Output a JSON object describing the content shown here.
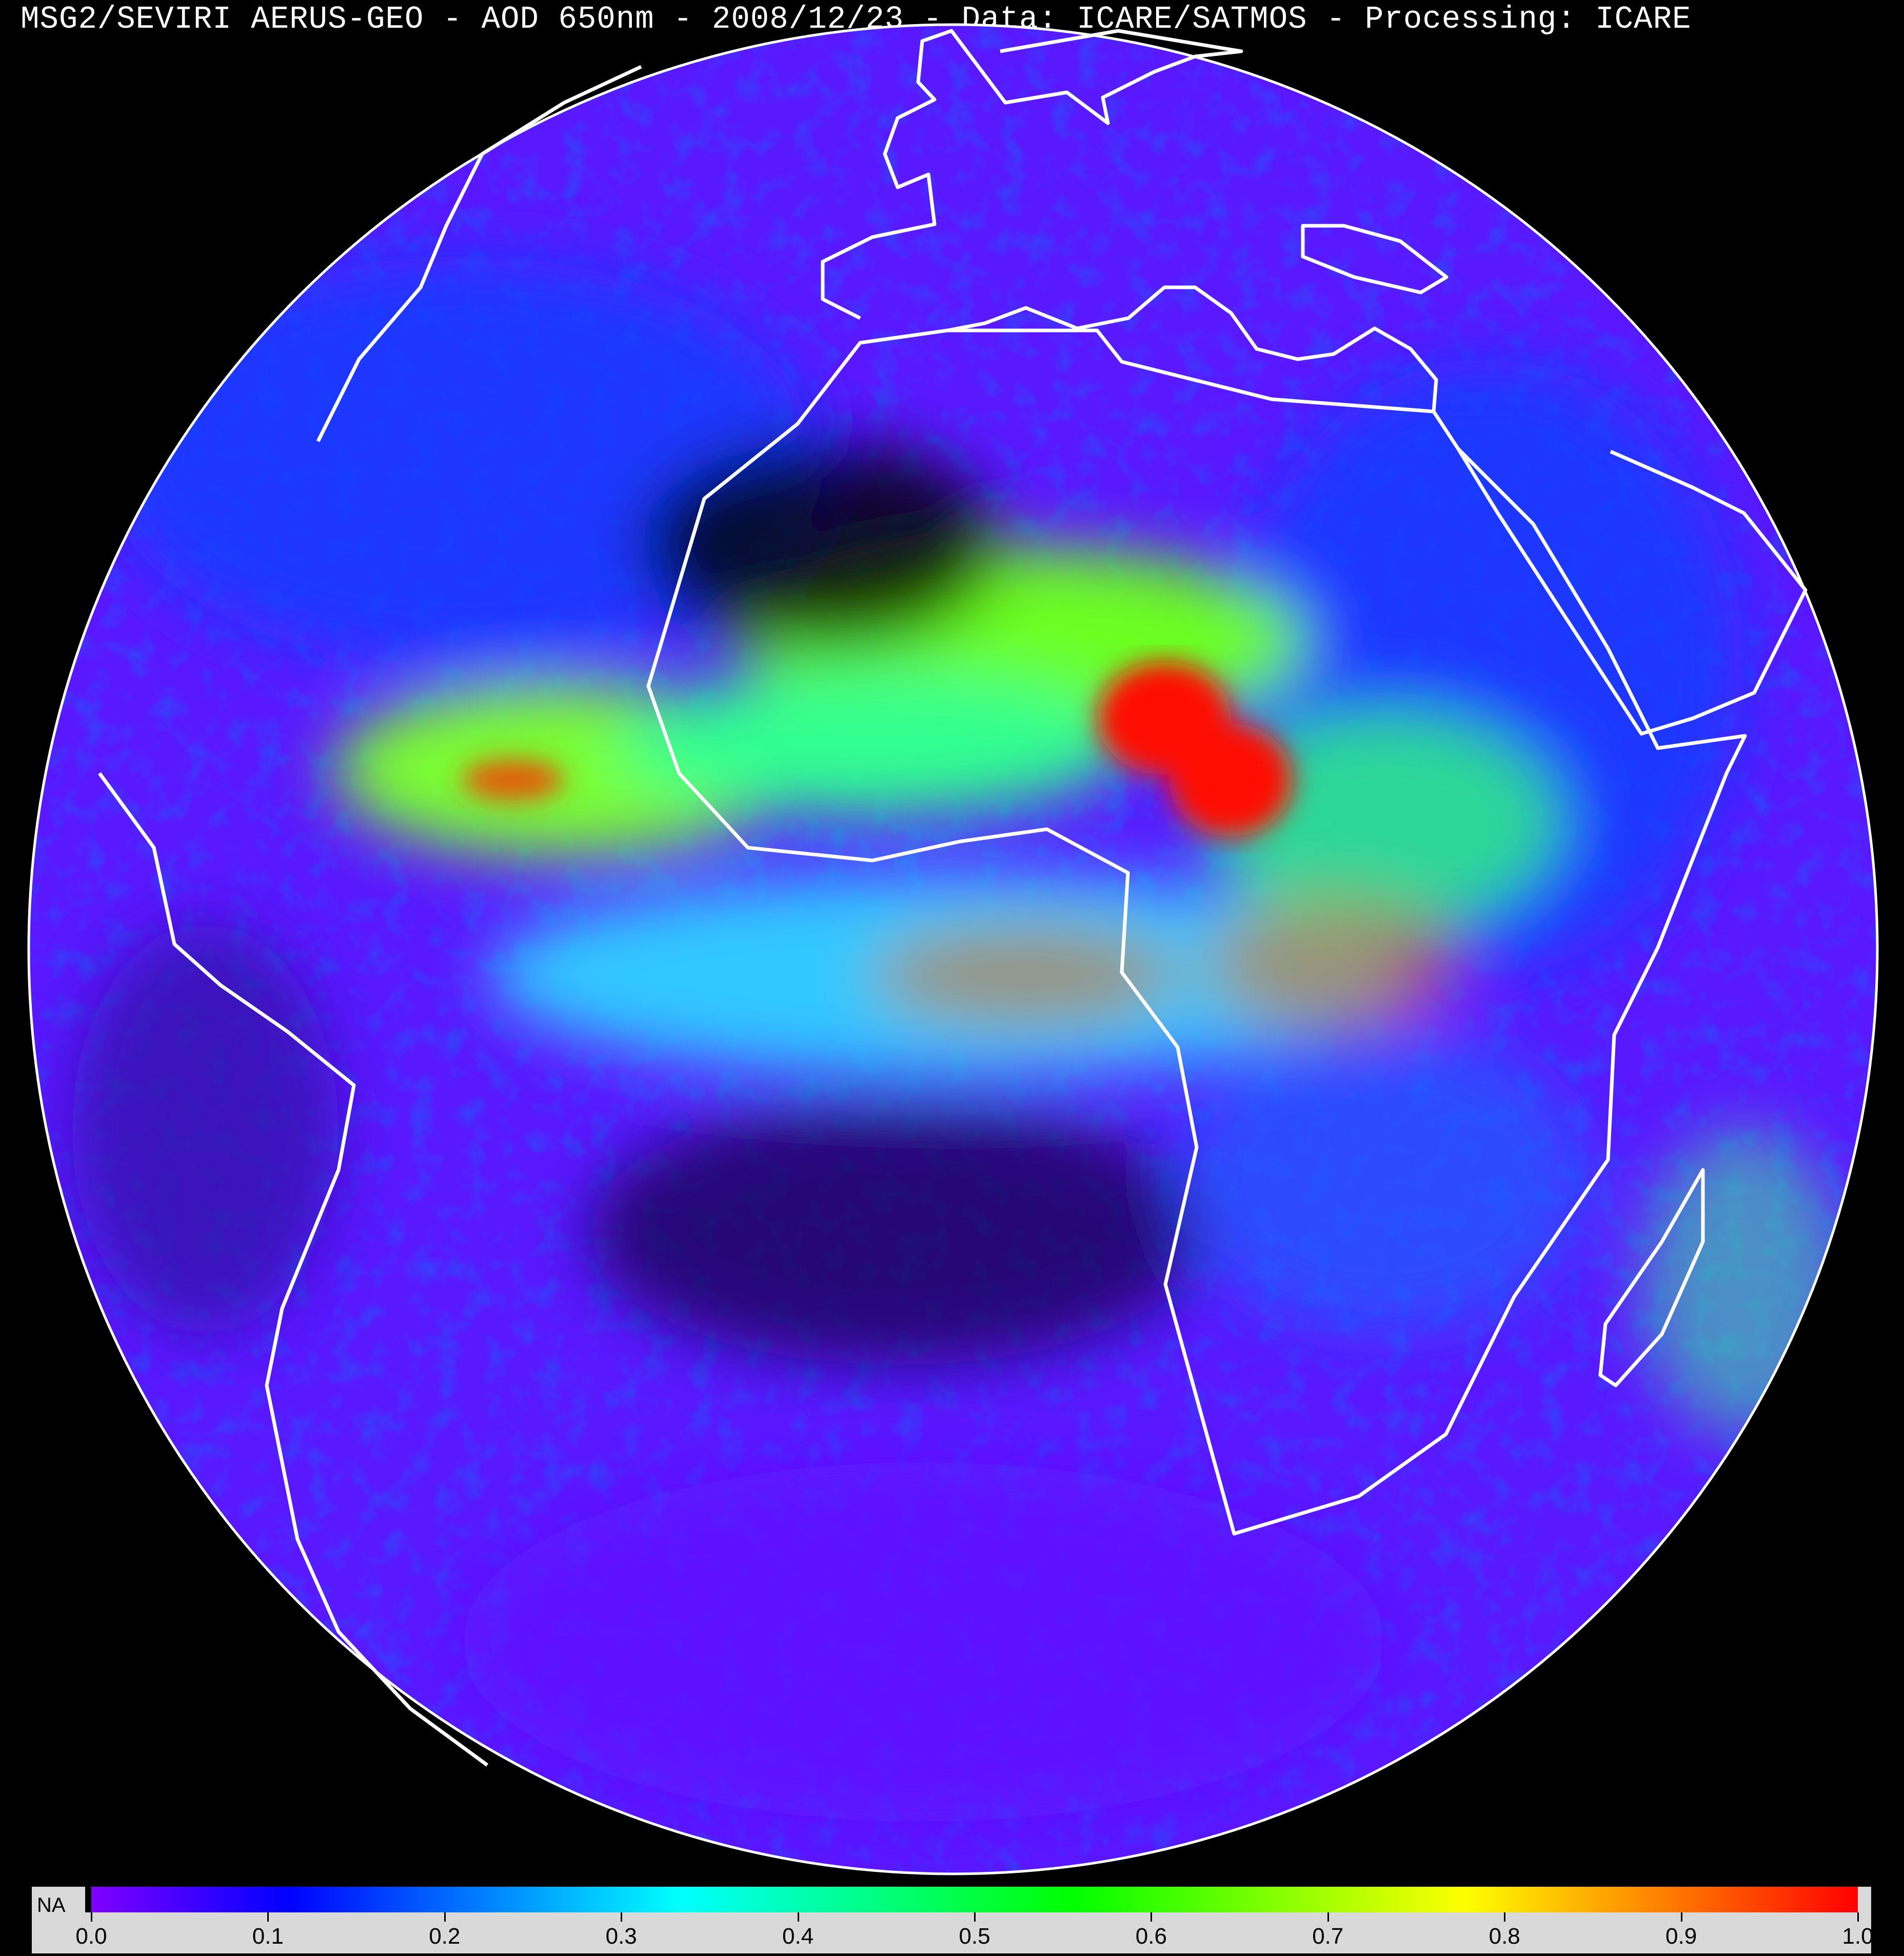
{
  "title": "MSG2/SEVIRI AERUS-GEO - AOD 650nm - 2008/12/23 - Data: ICARE/SATMOS - Processing: ICARE",
  "colorbar": {
    "na_label": "NA",
    "na_color": "#000000",
    "range": [
      0.0,
      1.0
    ],
    "stops": [
      "#8000ff",
      "#0000ff",
      "#0080ff",
      "#00ffff",
      "#00ff80",
      "#00ff00",
      "#80ff00",
      "#ffff00",
      "#ff8000",
      "#ff0000"
    ],
    "ticks": [
      "0.0",
      "0.1",
      "0.2",
      "0.3",
      "0.4",
      "0.5",
      "0.6",
      "0.7",
      "0.8",
      "0.9",
      "1.0"
    ]
  },
  "map": {
    "projection": "geostationary full disk",
    "coastline_color": "#ffffff",
    "background_color": "#5a18ff"
  }
}
